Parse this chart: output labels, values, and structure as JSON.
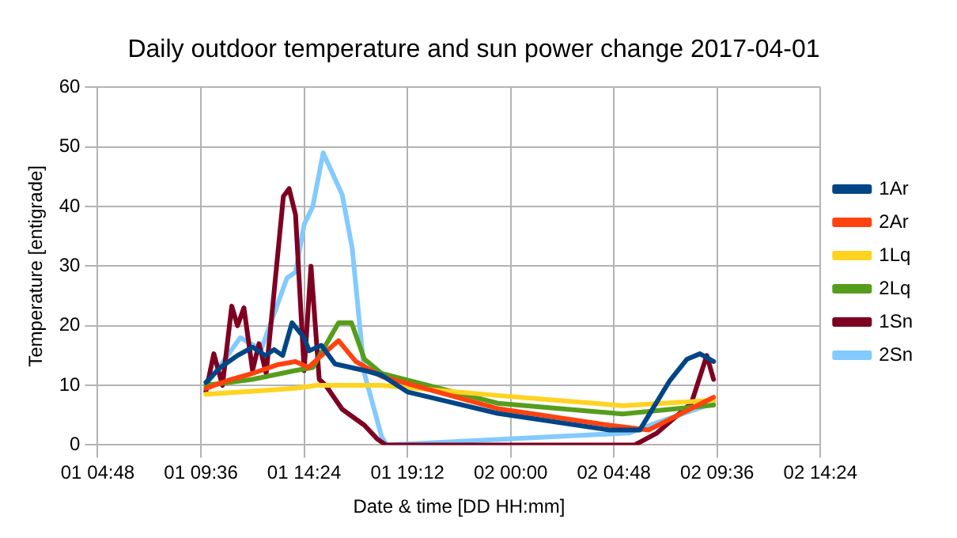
{
  "chart_data": {
    "type": "line",
    "title": "Daily outdoor temperature and sun power change 2017-04-01",
    "xlabel": "Date & time [DD HH:mm]",
    "ylabel": "Temperature [entigrade]",
    "xlim": [
      "2017-04-01T04:48",
      "2017-04-02T14:24"
    ],
    "xticks": [
      {
        "value": "2017-04-01T04:48",
        "label": "01 04:48"
      },
      {
        "value": "2017-04-01T09:36",
        "label": "01 09:36"
      },
      {
        "value": "2017-04-01T14:24",
        "label": "01 14:24"
      },
      {
        "value": "2017-04-01T19:12",
        "label": "01 19:12"
      },
      {
        "value": "2017-04-02T00:00",
        "label": "02 00:00"
      },
      {
        "value": "2017-04-02T04:48",
        "label": "02 04:48"
      },
      {
        "value": "2017-04-02T09:36",
        "label": "02 09:36"
      },
      {
        "value": "2017-04-02T14:24",
        "label": "02 14:24"
      }
    ],
    "ylim": [
      0,
      60
    ],
    "yticks": [
      0,
      10,
      20,
      30,
      40,
      50,
      60
    ],
    "grid": true,
    "legend": "right",
    "marker": "none",
    "line_style": "solid",
    "series": [
      {
        "name": "1Ar",
        "color": "#004586",
        "x": [
          "2017-04-01T09:50",
          "2017-04-01T10:30",
          "2017-04-01T11:18",
          "2017-04-01T12:00",
          "2017-04-01T12:36",
          "2017-04-01T13:00",
          "2017-04-01T13:24",
          "2017-04-01T13:50",
          "2017-04-01T14:24",
          "2017-04-01T14:38",
          "2017-04-01T15:12",
          "2017-04-01T15:50",
          "2017-04-01T17:12",
          "2017-04-01T18:00",
          "2017-04-01T19:12",
          "2017-04-01T23:24",
          "2017-04-02T04:36",
          "2017-04-02T06:00",
          "2017-04-02T07:24",
          "2017-04-02T08:12",
          "2017-04-02T08:48",
          "2017-04-02T09:26"
        ],
        "values": [
          10.5,
          13,
          15,
          16.4,
          15,
          16,
          15,
          20.5,
          18,
          15.8,
          16.7,
          13.6,
          12.5,
          11.7,
          8.9,
          5.3,
          2.5,
          2.5,
          10.8,
          14.4,
          15.3,
          14
        ]
      },
      {
        "name": "2Ar",
        "color": "#ff420e",
        "x": [
          "2017-04-01T09:50",
          "2017-04-01T11:00",
          "2017-04-01T12:00",
          "2017-04-01T13:12",
          "2017-04-01T14:00",
          "2017-04-01T14:36",
          "2017-04-01T15:12",
          "2017-04-01T16:00",
          "2017-04-01T16:48",
          "2017-04-01T18:00",
          "2017-04-01T23:24",
          "2017-04-02T04:36",
          "2017-04-02T06:24",
          "2017-04-02T09:26"
        ],
        "values": [
          9.5,
          11,
          12,
          13.5,
          14,
          13,
          15,
          17.5,
          14,
          11.5,
          6.1,
          3.3,
          2.5,
          8
        ]
      },
      {
        "name": "1Lq",
        "color": "#ffd320",
        "x": [
          "2017-04-01T09:50",
          "2017-04-01T12:00",
          "2017-04-01T14:00",
          "2017-04-01T15:00",
          "2017-04-01T18:00",
          "2017-04-01T23:24",
          "2017-04-02T05:12",
          "2017-04-02T09:26"
        ],
        "values": [
          8.5,
          9,
          9.5,
          10,
          10,
          8.3,
          6.6,
          7.5
        ]
      },
      {
        "name": "2Lq",
        "color": "#579d1c",
        "x": [
          "2017-04-01T09:50",
          "2017-04-01T12:00",
          "2017-04-01T14:00",
          "2017-04-01T14:48",
          "2017-04-01T15:36",
          "2017-04-01T16:00",
          "2017-04-01T16:36",
          "2017-04-01T17:12",
          "2017-04-01T18:00",
          "2017-04-01T23:24",
          "2017-04-02T05:12",
          "2017-04-02T09:26"
        ],
        "values": [
          10,
          11,
          12.5,
          13,
          18,
          20.5,
          20.5,
          14.4,
          12,
          7,
          5.2,
          6.7
        ]
      },
      {
        "name": "1Sn",
        "color": "#7e0021",
        "x": [
          "2017-04-01T09:50",
          "2017-04-01T10:12",
          "2017-04-01T10:36",
          "2017-04-01T11:02",
          "2017-04-01T11:18",
          "2017-04-01T11:36",
          "2017-04-01T12:00",
          "2017-04-01T12:18",
          "2017-04-01T12:38",
          "2017-04-01T13:26",
          "2017-04-01T13:42",
          "2017-04-01T14:00",
          "2017-04-01T14:24",
          "2017-04-01T14:43",
          "2017-04-01T15:06",
          "2017-04-01T15:24",
          "2017-04-01T16:10",
          "2017-04-01T17:12",
          "2017-04-01T17:48",
          "2017-04-01T18:12",
          "2017-04-02T05:46",
          "2017-04-02T06:48",
          "2017-04-02T08:24",
          "2017-04-02T09:07",
          "2017-04-02T09:26"
        ],
        "values": [
          9,
          15.3,
          10,
          23.3,
          20,
          23,
          12.5,
          17,
          12,
          41.7,
          43,
          38.6,
          12.5,
          30,
          11,
          10,
          6,
          3.3,
          1,
          0,
          0,
          2,
          7,
          15,
          11
        ]
      },
      {
        "name": "2Sn",
        "color": "#83caff",
        "x": [
          "2017-04-01T09:50",
          "2017-04-01T11:26",
          "2017-04-01T12:24",
          "2017-04-01T13:36",
          "2017-04-01T14:00",
          "2017-04-01T14:24",
          "2017-04-01T14:48",
          "2017-04-01T15:17",
          "2017-04-01T16:10",
          "2017-04-01T16:38",
          "2017-04-01T17:12",
          "2017-04-01T18:00",
          "2017-04-01T18:14",
          "2017-04-02T05:30",
          "2017-04-02T07:00",
          "2017-04-02T09:26"
        ],
        "values": [
          10,
          18,
          16,
          28,
          29,
          37,
          40,
          49,
          42,
          33,
          12,
          1.4,
          0,
          2,
          4,
          7
        ]
      }
    ]
  }
}
